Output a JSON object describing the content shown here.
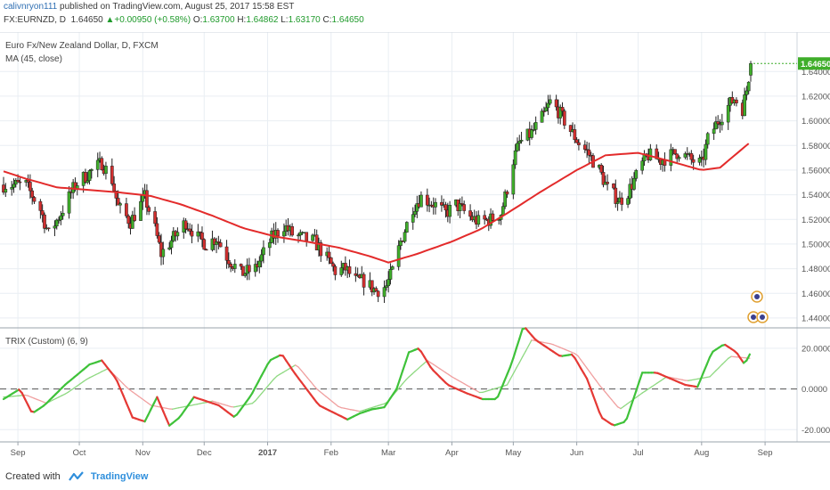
{
  "header": {
    "author": "calivnryon111",
    "published": "published on TradingView.com, August 25, 2017 15:58 EST",
    "symbol": "FX:EURNZD, D",
    "last": "1.64650",
    "arrow": "▲",
    "change": "+0.00950 (+0.58%)",
    "o_label": "O:",
    "o": "1.63700",
    "h_label": "H:",
    "h": "1.64862",
    "l_label": "L:",
    "l": "1.63170",
    "c_label": "C:",
    "c": "1.64650"
  },
  "legend": {
    "title": "Euro Fx/New Zealand Dollar, D, FXCM",
    "ma": "MA (45, close)",
    "trix": "TRIX (Custom) (6, 9)"
  },
  "colors": {
    "up": "#3fae2a",
    "down": "#d32f2f",
    "ma": "#e32b2b",
    "trix_up": "#3fc23a",
    "trix_down": "#e53935",
    "signal_up": "#8fd982",
    "signal_down": "#f0a0a0",
    "grid": "#e9eef3",
    "last_price_bg": "#3fae2a"
  },
  "footer": {
    "created": "Created with",
    "brand": "TradingView"
  },
  "chart_data": [
    {
      "type": "candlestick",
      "title": "Euro Fx/New Zealand Dollar, D, FXCM",
      "ylim": [
        1.432,
        1.672
      ],
      "y_ticks": [
        "1.64000",
        "1.62000",
        "1.60000",
        "1.58000",
        "1.56000",
        "1.54000",
        "1.52000",
        "1.50000",
        "1.48000",
        "1.46000",
        "1.44000"
      ],
      "x_ticks": [
        "Sep",
        "Oct",
        "Nov",
        "Dec",
        "2017",
        "Feb",
        "Mar",
        "Apr",
        "May",
        "Jun",
        "Jul",
        "Aug",
        "Sep"
      ],
      "last_price": "1.64650",
      "close_path": [
        [
          "2016-08-25",
          1.548
        ],
        [
          "2016-09-05",
          1.548
        ],
        [
          "2016-09-12",
          1.528
        ],
        [
          "2016-09-16",
          1.508
        ],
        [
          "2016-09-22",
          1.525
        ],
        [
          "2016-09-29",
          1.548
        ],
        [
          "2016-10-06",
          1.558
        ],
        [
          "2016-10-12",
          1.566
        ],
        [
          "2016-10-17",
          1.552
        ],
        [
          "2016-10-20",
          1.53
        ],
        [
          "2016-10-26",
          1.518
        ],
        [
          "2016-11-02",
          1.538
        ],
        [
          "2016-11-07",
          1.512
        ],
        [
          "2016-11-10",
          1.492
        ],
        [
          "2016-11-16",
          1.505
        ],
        [
          "2016-11-22",
          1.518
        ],
        [
          "2016-11-28",
          1.505
        ],
        [
          "2016-12-02",
          1.5
        ],
        [
          "2016-12-07",
          1.505
        ],
        [
          "2016-12-12",
          1.49
        ],
        [
          "2016-12-19",
          1.476
        ],
        [
          "2016-12-26",
          1.48
        ],
        [
          "2017-01-03",
          1.505
        ],
        [
          "2017-01-09",
          1.515
        ],
        [
          "2017-01-13",
          1.508
        ],
        [
          "2017-01-18",
          1.505
        ],
        [
          "2017-01-24",
          1.502
        ],
        [
          "2017-01-30",
          1.488
        ],
        [
          "2017-02-03",
          1.478
        ],
        [
          "2017-02-08",
          1.48
        ],
        [
          "2017-02-13",
          1.47
        ],
        [
          "2017-02-17",
          1.47
        ],
        [
          "2017-02-23",
          1.462
        ],
        [
          "2017-02-28",
          1.466
        ],
        [
          "2017-03-03",
          1.478
        ],
        [
          "2017-03-07",
          1.502
        ],
        [
          "2017-03-13",
          1.53
        ],
        [
          "2017-03-17",
          1.538
        ],
        [
          "2017-03-23",
          1.533
        ],
        [
          "2017-03-29",
          1.525
        ],
        [
          "2017-04-03",
          1.532
        ],
        [
          "2017-04-10",
          1.522
        ],
        [
          "2017-04-14",
          1.518
        ],
        [
          "2017-04-20",
          1.52
        ],
        [
          "2017-04-25",
          1.525
        ],
        [
          "2017-04-28",
          1.545
        ],
        [
          "2017-05-01",
          1.568
        ],
        [
          "2017-05-04",
          1.582
        ],
        [
          "2017-05-10",
          1.59
        ],
        [
          "2017-05-16",
          1.605
        ],
        [
          "2017-05-19",
          1.615
        ],
        [
          "2017-05-23",
          1.608
        ],
        [
          "2017-05-29",
          1.592
        ],
        [
          "2017-06-02",
          1.582
        ],
        [
          "2017-06-06",
          1.575
        ],
        [
          "2017-06-12",
          1.56
        ],
        [
          "2017-06-16",
          1.545
        ],
        [
          "2017-06-22",
          1.535
        ],
        [
          "2017-06-26",
          1.542
        ],
        [
          "2017-07-03",
          1.565
        ],
        [
          "2017-07-06",
          1.572
        ],
        [
          "2017-07-12",
          1.568
        ],
        [
          "2017-07-17",
          1.572
        ],
        [
          "2017-07-21",
          1.575
        ],
        [
          "2017-07-27",
          1.568
        ],
        [
          "2017-08-01",
          1.565
        ],
        [
          "2017-08-04",
          1.585
        ],
        [
          "2017-08-09",
          1.6
        ],
        [
          "2017-08-14",
          1.612
        ],
        [
          "2017-08-17",
          1.618
        ],
        [
          "2017-08-21",
          1.61
        ],
        [
          "2017-08-23",
          1.625
        ],
        [
          "2017-08-25",
          1.6465
        ]
      ],
      "ma_45": [
        [
          "2016-08-25",
          1.559
        ],
        [
          "2016-09-05",
          1.553
        ],
        [
          "2016-09-20",
          1.546
        ],
        [
          "2016-10-05",
          1.544
        ],
        [
          "2016-10-20",
          1.542
        ],
        [
          "2016-11-05",
          1.539
        ],
        [
          "2016-11-20",
          1.532
        ],
        [
          "2016-12-05",
          1.523
        ],
        [
          "2016-12-20",
          1.513
        ],
        [
          "2017-01-05",
          1.506
        ],
        [
          "2017-01-20",
          1.502
        ],
        [
          "2017-02-05",
          1.497
        ],
        [
          "2017-02-20",
          1.49
        ],
        [
          "2017-03-01",
          1.485
        ],
        [
          "2017-03-15",
          1.492
        ],
        [
          "2017-04-01",
          1.502
        ],
        [
          "2017-04-15",
          1.512
        ],
        [
          "2017-04-28",
          1.525
        ],
        [
          "2017-05-15",
          1.543
        ],
        [
          "2017-06-01",
          1.56
        ],
        [
          "2017-06-15",
          1.572
        ],
        [
          "2017-07-01",
          1.574
        ],
        [
          "2017-07-15",
          1.568
        ],
        [
          "2017-08-01",
          1.56
        ],
        [
          "2017-08-10",
          1.562
        ],
        [
          "2017-08-25",
          1.583
        ]
      ]
    },
    {
      "type": "line",
      "title": "TRIX (Custom) (6, 9)",
      "ylim": [
        -26,
        30
      ],
      "y_ticks": [
        "20.0000",
        "0.0000",
        "-20.0000"
      ],
      "zero_line": 0,
      "series": [
        {
          "name": "TRIX",
          "values": [
            [
              "2016-08-25",
              -5
            ],
            [
              "2016-09-02",
              0
            ],
            [
              "2016-09-08",
              -12
            ],
            [
              "2016-09-14",
              -8
            ],
            [
              "2016-09-24",
              2
            ],
            [
              "2016-10-06",
              12
            ],
            [
              "2016-10-12",
              14
            ],
            [
              "2016-10-19",
              5
            ],
            [
              "2016-10-27",
              -14
            ],
            [
              "2016-11-02",
              -16
            ],
            [
              "2016-11-08",
              -4
            ],
            [
              "2016-11-14",
              -18
            ],
            [
              "2016-11-19",
              -14
            ],
            [
              "2016-11-26",
              -4
            ],
            [
              "2016-12-02",
              -6
            ],
            [
              "2016-12-08",
              -8
            ],
            [
              "2016-12-16",
              -14
            ],
            [
              "2016-12-24",
              -3
            ],
            [
              "2017-01-02",
              14
            ],
            [
              "2017-01-08",
              17
            ],
            [
              "2017-01-14",
              8
            ],
            [
              "2017-01-20",
              0
            ],
            [
              "2017-01-26",
              -8
            ],
            [
              "2017-02-03",
              -12
            ],
            [
              "2017-02-09",
              -15
            ],
            [
              "2017-02-15",
              -12
            ],
            [
              "2017-02-21",
              -10
            ],
            [
              "2017-02-27",
              -9
            ],
            [
              "2017-03-05",
              0
            ],
            [
              "2017-03-11",
              18
            ],
            [
              "2017-03-16",
              20
            ],
            [
              "2017-03-22",
              10
            ],
            [
              "2017-03-30",
              2
            ],
            [
              "2017-04-08",
              -2
            ],
            [
              "2017-04-16",
              -5
            ],
            [
              "2017-04-23",
              -5
            ],
            [
              "2017-04-30",
              12
            ],
            [
              "2017-05-06",
              31
            ],
            [
              "2017-05-12",
              24
            ],
            [
              "2017-05-18",
              20
            ],
            [
              "2017-05-24",
              16
            ],
            [
              "2017-05-30",
              17
            ],
            [
              "2017-06-06",
              5
            ],
            [
              "2017-06-13",
              -14
            ],
            [
              "2017-06-19",
              -18
            ],
            [
              "2017-06-25",
              -16
            ],
            [
              "2017-07-03",
              8
            ],
            [
              "2017-07-10",
              8
            ],
            [
              "2017-07-17",
              5
            ],
            [
              "2017-07-24",
              2
            ],
            [
              "2017-07-30",
              1
            ],
            [
              "2017-08-06",
              18
            ],
            [
              "2017-08-12",
              22
            ],
            [
              "2017-08-18",
              18
            ],
            [
              "2017-08-22",
              12
            ],
            [
              "2017-08-25",
              18
            ]
          ]
        },
        {
          "name": "Signal",
          "values": [
            [
              "2016-08-25",
              -4
            ],
            [
              "2016-09-05",
              -3
            ],
            [
              "2016-09-15",
              -7
            ],
            [
              "2016-09-25",
              -2
            ],
            [
              "2016-10-05",
              5
            ],
            [
              "2016-10-15",
              10
            ],
            [
              "2016-10-25",
              0
            ],
            [
              "2016-11-05",
              -8
            ],
            [
              "2016-11-15",
              -10
            ],
            [
              "2016-11-25",
              -8
            ],
            [
              "2016-12-05",
              -6
            ],
            [
              "2016-12-15",
              -9
            ],
            [
              "2016-12-25",
              -7
            ],
            [
              "2017-01-05",
              6
            ],
            [
              "2017-01-15",
              12
            ],
            [
              "2017-01-25",
              0
            ],
            [
              "2017-02-05",
              -9
            ],
            [
              "2017-02-15",
              -11
            ],
            [
              "2017-02-28",
              -7
            ],
            [
              "2017-03-10",
              5
            ],
            [
              "2017-03-20",
              14
            ],
            [
              "2017-04-01",
              6
            ],
            [
              "2017-04-15",
              -2
            ],
            [
              "2017-04-28",
              2
            ],
            [
              "2017-05-10",
              24
            ],
            [
              "2017-05-20",
              22
            ],
            [
              "2017-06-01",
              17
            ],
            [
              "2017-06-12",
              2
            ],
            [
              "2017-06-22",
              -10
            ],
            [
              "2017-07-03",
              -2
            ],
            [
              "2017-07-15",
              6
            ],
            [
              "2017-07-25",
              4
            ],
            [
              "2017-08-05",
              6
            ],
            [
              "2017-08-15",
              16
            ],
            [
              "2017-08-25",
              15
            ]
          ]
        }
      ]
    }
  ]
}
